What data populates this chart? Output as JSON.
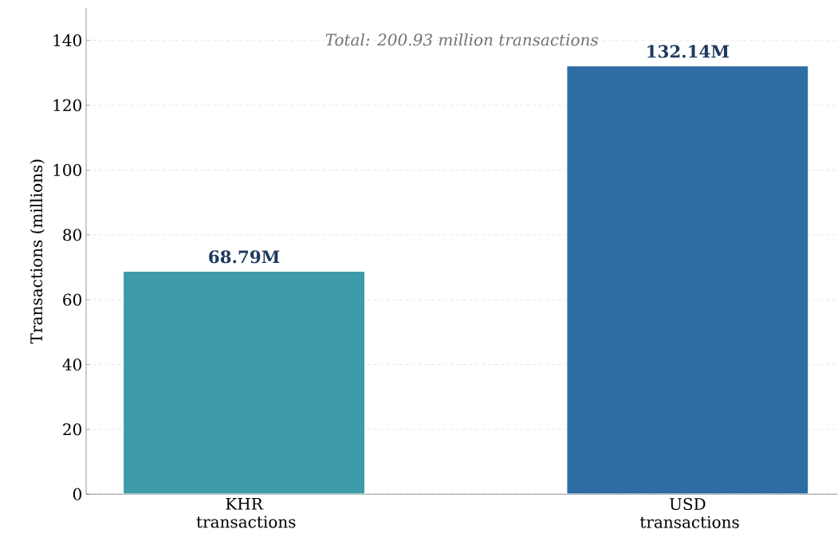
{
  "chart_data": {
    "type": "bar",
    "ylabel": "Transactions (millions)",
    "categories": [
      "KHR transactions",
      "USD transactions"
    ],
    "values": [
      68.79,
      132.14
    ],
    "colors": [
      "#3d9ba8",
      "#2e6da4"
    ],
    "value_labels": [
      "68.79M",
      "132.14M"
    ],
    "annotations": [
      "Total: 200.93 million transactions"
    ],
    "ylim": [
      0,
      150
    ],
    "yticks": [
      0,
      20,
      40,
      60,
      80,
      100,
      120,
      140
    ],
    "grid": "y"
  }
}
